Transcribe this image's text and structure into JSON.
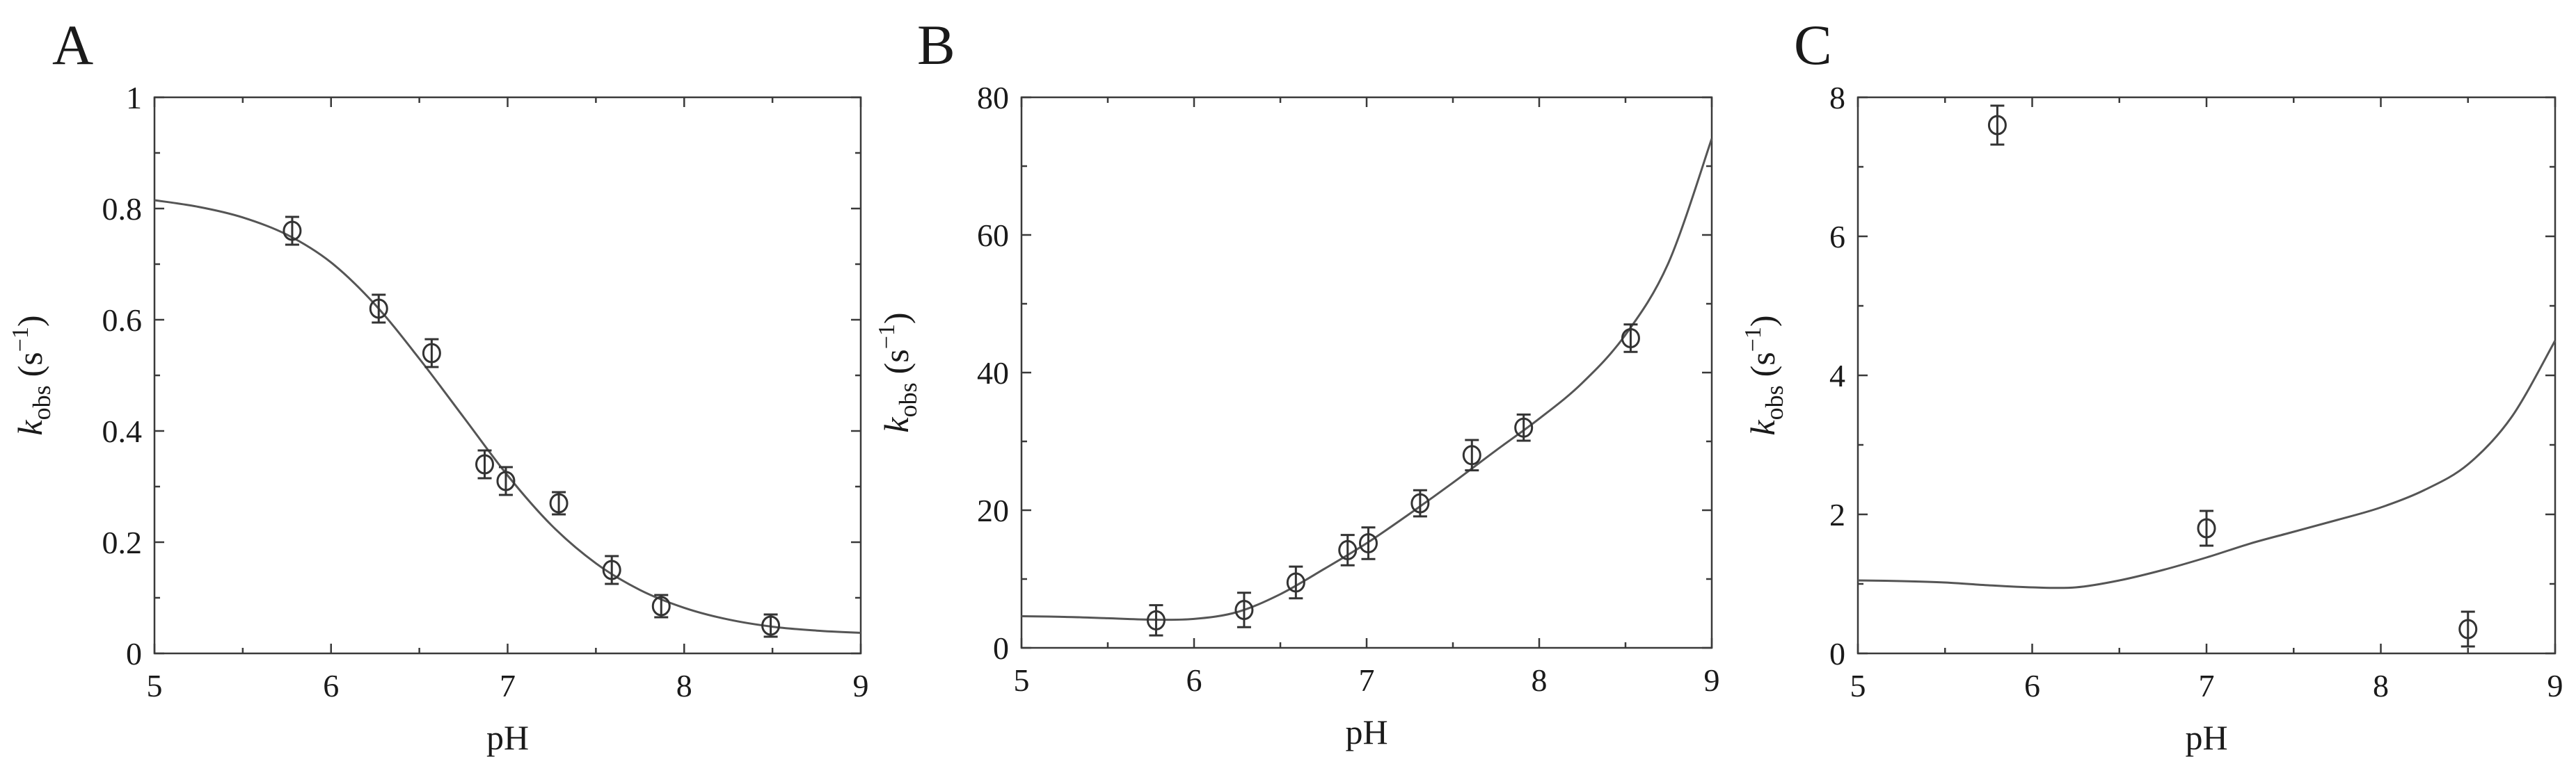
{
  "chart_data": [
    {
      "type": "scatter",
      "panel_label": "A",
      "xlabel": "pH",
      "ylabel_main": "k",
      "ylabel_sub": "obs",
      "ylabel_unit_open": "(s",
      "ylabel_unit_exp": "−1",
      "ylabel_unit_close": ")",
      "xlim": [
        5,
        9
      ],
      "ylim": [
        0,
        1
      ],
      "x_ticks": [
        5,
        6,
        7,
        8,
        9
      ],
      "y_ticks": [
        0,
        0.2,
        0.4,
        0.6,
        0.8,
        1
      ],
      "x_tick_labels": [
        "5",
        "6",
        "7",
        "8",
        "9"
      ],
      "y_tick_labels": [
        "0",
        "0.2",
        "0.4",
        "0.6",
        "0.8",
        "1"
      ],
      "points": [
        {
          "x": 5.78,
          "y": 0.76,
          "err": 0.025
        },
        {
          "x": 6.27,
          "y": 0.62,
          "err": 0.025
        },
        {
          "x": 6.57,
          "y": 0.54,
          "err": 0.025
        },
        {
          "x": 6.87,
          "y": 0.34,
          "err": 0.025
        },
        {
          "x": 6.99,
          "y": 0.31,
          "err": 0.025
        },
        {
          "x": 7.29,
          "y": 0.27,
          "err": 0.02
        },
        {
          "x": 7.59,
          "y": 0.15,
          "err": 0.025
        },
        {
          "x": 7.87,
          "y": 0.085,
          "err": 0.02
        },
        {
          "x": 8.49,
          "y": 0.05,
          "err": 0.02
        }
      ],
      "fit": {
        "x": [
          5.0,
          5.25,
          5.5,
          5.75,
          6.0,
          6.25,
          6.5,
          6.75,
          7.0,
          7.25,
          7.5,
          7.75,
          8.0,
          8.25,
          8.5,
          8.75,
          9.0
        ],
        "y": [
          0.815,
          0.803,
          0.784,
          0.753,
          0.703,
          0.627,
          0.53,
          0.425,
          0.32,
          0.23,
          0.162,
          0.114,
          0.082,
          0.061,
          0.048,
          0.041,
          0.037
        ]
      }
    },
    {
      "type": "scatter",
      "panel_label": "B",
      "xlabel": "pH",
      "ylabel_main": "k",
      "ylabel_sub": "obs",
      "ylabel_unit_open": "(s",
      "ylabel_unit_exp": "−1",
      "ylabel_unit_close": ")",
      "xlim": [
        5,
        9
      ],
      "ylim": [
        0,
        80
      ],
      "x_ticks": [
        5,
        6,
        7,
        8,
        9
      ],
      "y_ticks": [
        0,
        20,
        40,
        60,
        80
      ],
      "x_tick_labels": [
        "5",
        "6",
        "7",
        "8",
        "9"
      ],
      "y_tick_labels": [
        "0",
        "20",
        "40",
        "60",
        "80"
      ],
      "points": [
        {
          "x": 5.78,
          "y": 4.0,
          "err": 2.2
        },
        {
          "x": 6.29,
          "y": 5.5,
          "err": 2.5
        },
        {
          "x": 6.59,
          "y": 9.5,
          "err": 2.3
        },
        {
          "x": 6.89,
          "y": 14.2,
          "err": 2.2
        },
        {
          "x": 7.01,
          "y": 15.2,
          "err": 2.3
        },
        {
          "x": 7.31,
          "y": 21.0,
          "err": 1.9
        },
        {
          "x": 7.61,
          "y": 28.0,
          "err": 2.2
        },
        {
          "x": 7.91,
          "y": 32.0,
          "err": 1.9
        },
        {
          "x": 8.53,
          "y": 45.0,
          "err": 2.0
        }
      ],
      "fit": {
        "x": [
          5.0,
          5.25,
          5.5,
          5.75,
          6.0,
          6.25,
          6.5,
          6.75,
          7.0,
          7.25,
          7.5,
          7.75,
          8.0,
          8.25,
          8.5,
          8.75,
          9.0
        ],
        "y": [
          4.6,
          4.5,
          4.3,
          4.1,
          4.2,
          5.2,
          7.8,
          11.4,
          15.2,
          19.5,
          24.0,
          28.7,
          33.3,
          38.5,
          45.5,
          56.0,
          74.0
        ]
      }
    },
    {
      "type": "scatter",
      "panel_label": "C",
      "xlabel": "pH",
      "ylabel_main": "k",
      "ylabel_sub": "obs",
      "ylabel_unit_open": "(s",
      "ylabel_unit_exp": "−1",
      "ylabel_unit_close": ")",
      "xlim": [
        5,
        9
      ],
      "ylim": [
        0,
        8
      ],
      "x_ticks": [
        5,
        6,
        7,
        8,
        9
      ],
      "y_ticks": [
        0,
        2,
        4,
        6,
        8
      ],
      "x_tick_labels": [
        "5",
        "6",
        "7",
        "8",
        "9"
      ],
      "y_tick_labels": [
        "0",
        "2",
        "4",
        "6",
        "8"
      ],
      "points": [
        {
          "x": 5.8,
          "y": 7.6,
          "err": 0.28
        },
        {
          "x": 7.0,
          "y": 1.8,
          "err": 0.25
        },
        {
          "x": 8.5,
          "y": 0.35,
          "err": 0.25
        }
      ],
      "fit": {
        "x": [
          5.0,
          5.25,
          5.5,
          5.75,
          6.0,
          6.25,
          6.5,
          6.75,
          7.0,
          7.25,
          7.5,
          7.75,
          8.0,
          8.25,
          8.5,
          8.75,
          9.0
        ],
        "y": [
          1.05,
          1.04,
          1.02,
          0.98,
          0.95,
          0.95,
          1.05,
          1.2,
          1.38,
          1.58,
          1.75,
          1.92,
          2.1,
          2.35,
          2.72,
          3.4,
          4.5
        ]
      }
    }
  ]
}
